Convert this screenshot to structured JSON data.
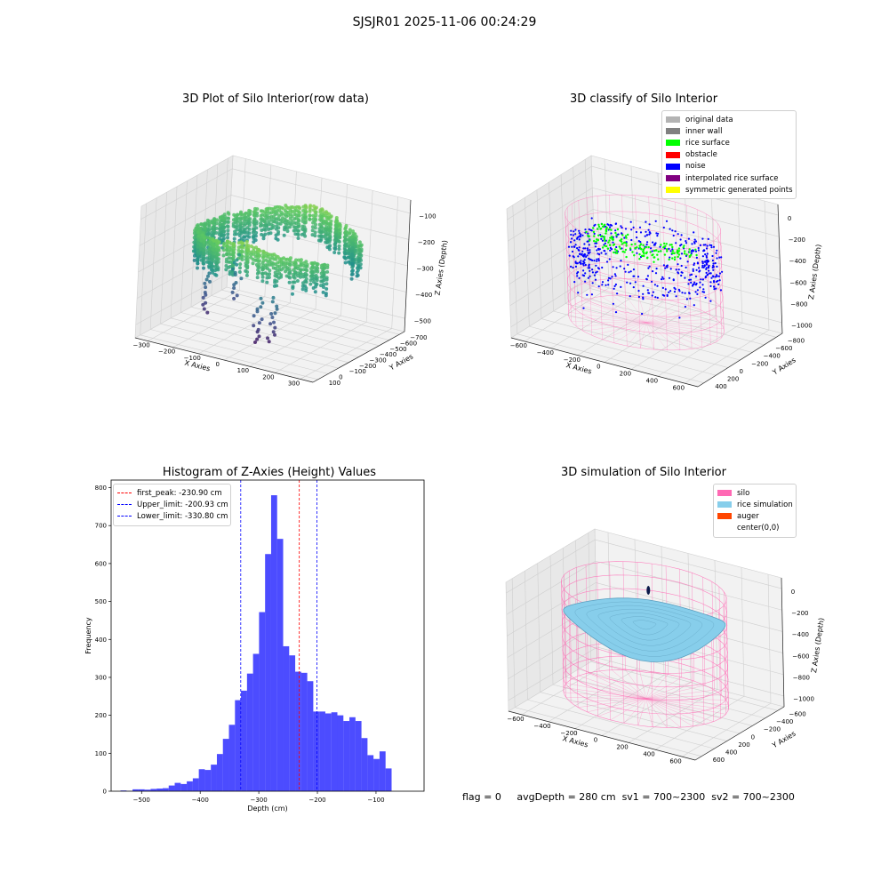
{
  "suptitle": "SJSJR01 2025-11-06 00:24:29",
  "footer": {
    "flag": "flag = 0",
    "avg_depth": "avgDepth = 280 cm",
    "sv1": "sv1 = 700~2300",
    "sv2": "sv2 = 700~2300"
  },
  "chart_data": [
    {
      "type": "scatter",
      "title": "3D Plot of Silo Interior(row data)",
      "xlabel": "X Axies",
      "ylabel": "Y Axies",
      "zlabel": "Z Axies (Depth)",
      "x_ticks": [
        "−300",
        "−200",
        "−100",
        "0",
        "100",
        "200",
        "300"
      ],
      "y_ticks": [
        "100",
        "0",
        "−100",
        "−200",
        "−300",
        "−400",
        "−500",
        "−600",
        "−700"
      ],
      "z_ticks": [
        "−100",
        "−200",
        "−300",
        "−400",
        "−500"
      ],
      "xlim": [
        -330,
        330
      ],
      "ylim": [
        -720,
        170
      ],
      "zlim": [
        -560,
        -40
      ],
      "colormap": "viridis"
    },
    {
      "type": "scatter",
      "title": "3D classify of Silo Interior",
      "xlabel": "X Axies",
      "ylabel": "Y Axies",
      "zlabel": "Z Axies (Depth)",
      "x_ticks": [
        "−600",
        "−400",
        "−200",
        "0",
        "200",
        "400",
        "600"
      ],
      "y_ticks": [
        "400",
        "200",
        "0",
        "−200",
        "−400",
        "−600",
        "−800"
      ],
      "z_ticks": [
        "0",
        "−200",
        "−400",
        "−600",
        "−800",
        "−1000"
      ],
      "xlim": [
        -660,
        660
      ],
      "ylim": [
        -860,
        460
      ],
      "zlim": [
        -1100,
        60
      ],
      "legend": [
        {
          "label": "original data",
          "color": "#b3b3b3"
        },
        {
          "label": "inner wall",
          "color": "#808080"
        },
        {
          "label": "rice surface",
          "color": "#00ff00"
        },
        {
          "label": "obstacle",
          "color": "#ff0000"
        },
        {
          "label": "noise",
          "color": "#0000ff"
        },
        {
          "label": "interpolated rice surface",
          "color": "#800080"
        },
        {
          "label": "symmetric generated points",
          "color": "#ffff00"
        }
      ]
    },
    {
      "type": "bar",
      "title": "Histogram of Z-Axies (Height) Values",
      "xlabel": "Depth (cm)",
      "ylabel": "Frequency",
      "xlim": [
        -552,
        -18
      ],
      "ylim": [
        0,
        820
      ],
      "x_ticks": [
        -500,
        -400,
        -300,
        -200,
        -100
      ],
      "y_ticks": [
        0,
        100,
        200,
        300,
        400,
        500,
        600,
        700,
        800
      ],
      "bin_start": -536,
      "bin_width": 10.28,
      "values": [
        2,
        1,
        5,
        5,
        4,
        6,
        7,
        8,
        15,
        22,
        19,
        26,
        34,
        58,
        56,
        70,
        98,
        138,
        175,
        240,
        265,
        310,
        362,
        472,
        625,
        780,
        665,
        382,
        358,
        315,
        312,
        290,
        210,
        210,
        205,
        208,
        200,
        185,
        195,
        185,
        140,
        95,
        85,
        105,
        60
      ],
      "bar_color": "#0000ff",
      "vlines": [
        {
          "label": "first_peak: -230.90 cm",
          "x": -230.9,
          "color": "#ff0000"
        },
        {
          "label": "Upper_limit: -200.93 cm",
          "x": -200.93,
          "color": "#0000ff"
        },
        {
          "label": "Lower_limit: -330.80 cm",
          "x": -330.8,
          "color": "#0000ff"
        }
      ]
    },
    {
      "type": "scatter",
      "title": "3D simulation of Silo Interior",
      "xlabel": "X Axies",
      "ylabel": "Y Axies",
      "zlabel": "Z Axies (Depth)",
      "x_ticks": [
        "−600",
        "−400",
        "−200",
        "0",
        "200",
        "400",
        "600"
      ],
      "y_ticks": [
        "600",
        "400",
        "200",
        "0",
        "−200",
        "−400",
        "−600"
      ],
      "z_ticks": [
        "0",
        "−200",
        "−400",
        "−600",
        "−800",
        "−1000"
      ],
      "xlim": [
        -660,
        660
      ],
      "ylim": [
        -660,
        660
      ],
      "zlim": [
        -1100,
        60
      ],
      "legend": [
        {
          "label": "silo",
          "color": "#ff69b4"
        },
        {
          "label": "rice simulation",
          "color": "#87ceeb"
        },
        {
          "label": "auger",
          "color": "#ff4500"
        },
        {
          "label": "center(0,0)",
          "color": "#ffffff"
        }
      ]
    }
  ]
}
